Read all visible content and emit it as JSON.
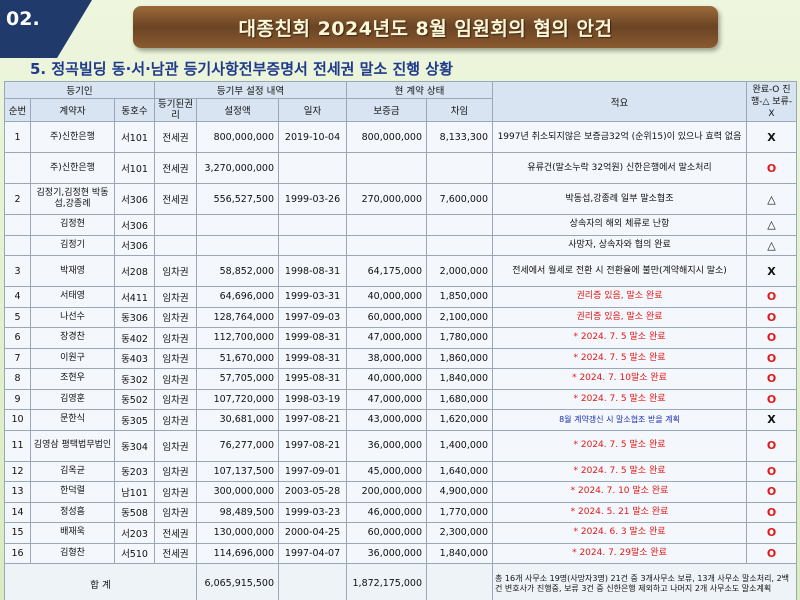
{
  "slide_number": "02.",
  "title": "대종친회 2024년도 8월 임원회의 협의 안건",
  "subtitle": "5. 정곡빌딩 동·서·남관 등기사항전부증명서 전세권 말소 진행 상황",
  "header": {
    "group_registrant": "등기인",
    "group_registry": "등기부 설정 내역",
    "group_contract": "현 계약 상태",
    "seq": "순번",
    "holder": "계약자",
    "unit": "동호수",
    "right": "등기된권리",
    "amount": "설정액",
    "date": "일자",
    "deposit": "보증금",
    "rent": "차임",
    "note": "적요",
    "status": "완료-O 진행-△ 보류-X"
  },
  "rows": [
    {
      "seq": "1",
      "holder": "주)신한은행",
      "unit": "서101",
      "right": "전세권",
      "amount": "800,000,000",
      "date": "2019-10-04",
      "deposit": "800,000,000",
      "rent": "8,133,300",
      "note": "1997년 취소되지않은 보증금32억 (순위15)이 있으나 효력 없음",
      "status": "X",
      "style": "normal",
      "tall": true
    },
    {
      "seq": "",
      "holder": "주)신한은행",
      "unit": "서101",
      "right": "전세권",
      "amount": "3,270,000,000",
      "date": "",
      "deposit": "",
      "rent": "",
      "note": "유류건(말소누락 32억원) 신한은행에서 말소처리",
      "status": "O",
      "style": "normal",
      "tall": true
    },
    {
      "seq": "2",
      "holder": "김정기,김정현 박동섭,강종례",
      "unit": "서306",
      "right": "전세권",
      "amount": "556,527,500",
      "date": "1999-03-26",
      "deposit": "270,000,000",
      "rent": "7,600,000",
      "note": "박동섭,강종례 일부 말소협조",
      "status": "△",
      "style": "normal",
      "tall": true
    },
    {
      "seq": "",
      "holder": "김정현",
      "unit": "서306",
      "right": "",
      "amount": "",
      "date": "",
      "deposit": "",
      "rent": "",
      "note": "상속자의 해외 체류로 난항",
      "status": "△",
      "style": "normal",
      "tall": false
    },
    {
      "seq": "",
      "holder": "김정기",
      "unit": "서306",
      "right": "",
      "amount": "",
      "date": "",
      "deposit": "",
      "rent": "",
      "note": "사망자, 상속자와 협의 완료",
      "status": "△",
      "style": "normal",
      "tall": false
    },
    {
      "seq": "3",
      "holder": "박재영",
      "unit": "서208",
      "right": "임차권",
      "amount": "58,852,000",
      "date": "1998-08-31",
      "deposit": "64,175,000",
      "rent": "2,000,000",
      "note": "전세에서 월세로 전환 시 전환율에 불만(계약해지시 말소)",
      "status": "X",
      "style": "normal",
      "tall": true
    },
    {
      "seq": "4",
      "holder": "서태영",
      "unit": "서411",
      "right": "임차권",
      "amount": "64,696,000",
      "date": "1999-03-31",
      "deposit": "40,000,000",
      "rent": "1,850,000",
      "note": "권리증 있음, 말소 완료",
      "status": "O",
      "style": "red",
      "tall": false
    },
    {
      "seq": "5",
      "holder": "나선수",
      "unit": "동306",
      "right": "임차권",
      "amount": "128,764,000",
      "date": "1997-09-03",
      "deposit": "60,000,000",
      "rent": "2,100,000",
      "note": "권리증 있음, 말소 완료",
      "status": "O",
      "style": "red",
      "tall": false
    },
    {
      "seq": "6",
      "holder": "장경찬",
      "unit": "동402",
      "right": "임차권",
      "amount": "112,700,000",
      "date": "1999-08-31",
      "deposit": "47,000,000",
      "rent": "1,780,000",
      "note": "* 2024. 7. 5 말소 완료",
      "status": "O",
      "style": "red",
      "tall": false
    },
    {
      "seq": "7",
      "holder": "이원구",
      "unit": "동403",
      "right": "임차권",
      "amount": "51,670,000",
      "date": "1999-08-31",
      "deposit": "38,000,000",
      "rent": "1,860,000",
      "note": "* 2024. 7. 5 말소 완료",
      "status": "O",
      "style": "red",
      "tall": false
    },
    {
      "seq": "8",
      "holder": "조현우",
      "unit": "동302",
      "right": "임차권",
      "amount": "57,705,000",
      "date": "1995-08-31",
      "deposit": "40,000,000",
      "rent": "1,840,000",
      "note": "* 2024. 7. 10말소 완료",
      "status": "O",
      "style": "red",
      "tall": false
    },
    {
      "seq": "9",
      "holder": "김영훈",
      "unit": "동502",
      "right": "임차권",
      "amount": "107,720,000",
      "date": "1998-03-19",
      "deposit": "47,000,000",
      "rent": "1,680,000",
      "note": "* 2024. 7. 5 말소 완료",
      "status": "O",
      "style": "red",
      "tall": false
    },
    {
      "seq": "10",
      "holder": "문한식",
      "unit": "동305",
      "right": "임차권",
      "amount": "30,681,000",
      "date": "1997-08-21",
      "deposit": "43,000,000",
      "rent": "1,620,000",
      "note": "8월 계약갱신 시 말소협조 받을 계획",
      "status": "X",
      "style": "blue",
      "tall": false
    },
    {
      "seq": "11",
      "holder": "김영삼 평택법무법인",
      "unit": "동304",
      "right": "임차권",
      "amount": "76,277,000",
      "date": "1997-08-21",
      "deposit": "36,000,000",
      "rent": "1,400,000",
      "note": "* 2024. 7. 5 말소 완료",
      "status": "O",
      "style": "red",
      "tall": true
    },
    {
      "seq": "12",
      "holder": "김옥균",
      "unit": "동203",
      "right": "임차권",
      "amount": "107,137,500",
      "date": "1997-09-01",
      "deposit": "45,000,000",
      "rent": "1,640,000",
      "note": "* 2024. 7. 5 말소 완료",
      "status": "O",
      "style": "red",
      "tall": false
    },
    {
      "seq": "13",
      "holder": "한덕렬",
      "unit": "남101",
      "right": "임차권",
      "amount": "300,000,000",
      "date": "2003-05-28",
      "deposit": "200,000,000",
      "rent": "4,900,000",
      "note": "* 2024. 7. 10 말소 완료",
      "status": "O",
      "style": "red",
      "tall": false
    },
    {
      "seq": "14",
      "holder": "정성흠",
      "unit": "동508",
      "right": "임차권",
      "amount": "98,489,500",
      "date": "1999-03-23",
      "deposit": "46,000,000",
      "rent": "1,770,000",
      "note": "* 2024. 5. 21 말소 완료",
      "status": "O",
      "style": "red",
      "tall": false
    },
    {
      "seq": "15",
      "holder": "배재욱",
      "unit": "서203",
      "right": "전세권",
      "amount": "130,000,000",
      "date": "2000-04-25",
      "deposit": "60,000,000",
      "rent": "2,300,000",
      "note": "* 2024. 6. 3 말소 완료",
      "status": "O",
      "style": "red",
      "tall": false
    },
    {
      "seq": "16",
      "holder": "김형찬",
      "unit": "서510",
      "right": "전세권",
      "amount": "114,696,000",
      "date": "1997-04-07",
      "deposit": "36,000,000",
      "rent": "1,840,000",
      "note": "* 2024. 7. 29말소 완료",
      "status": "O",
      "style": "red",
      "tall": false
    }
  ],
  "total": {
    "label": "합 계",
    "amount": "6,065,915,500",
    "deposit": "1,872,175,000",
    "summary": "총 16개 사무소 19명(사망자3명) 21건 중 3개사무소 보류, 13개 사무소 말소처리, 2백건 변호사가 진행중, 보류 3건 중 신한은행 제외하고 나머지 2개 사무소도 말소계획"
  },
  "colors": {
    "red_text": "#e01818",
    "blue_text": "#1a2fb0",
    "header_bg": "#d8e4f1",
    "title_navy": "#1f3a8a"
  }
}
